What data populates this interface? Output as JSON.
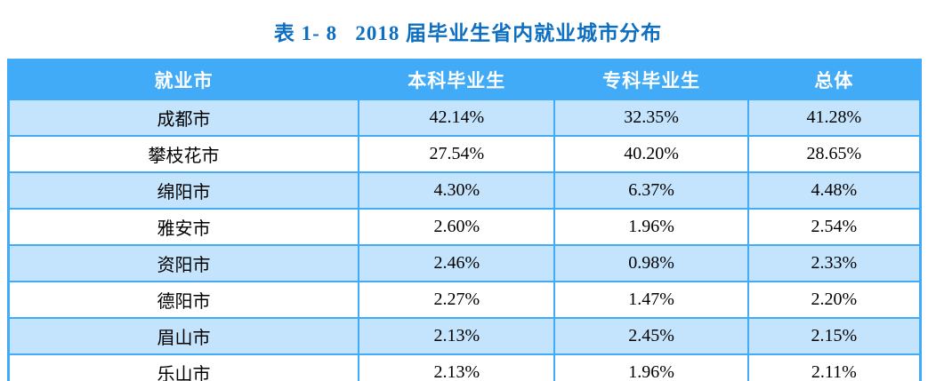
{
  "title": {
    "text": "表 1- 8   2018 届毕业生省内就业城市分布"
  },
  "table": {
    "columns": [
      "就业市",
      "本科毕业生",
      "专科毕业生",
      "总体"
    ],
    "rows": [
      {
        "cells": [
          "成都市",
          "42.14%",
          "32.35%",
          "41.28%"
        ]
      },
      {
        "cells": [
          "攀枝花市",
          "27.54%",
          "40.20%",
          "28.65%"
        ]
      },
      {
        "cells": [
          "绵阳市",
          "4.30%",
          "6.37%",
          "4.48%"
        ]
      },
      {
        "cells": [
          "雅安市",
          "2.60%",
          "1.96%",
          "2.54%"
        ]
      },
      {
        "cells": [
          "资阳市",
          "2.46%",
          "0.98%",
          "2.33%"
        ]
      },
      {
        "cells": [
          "德阳市",
          "2.27%",
          "1.47%",
          "2.20%"
        ]
      },
      {
        "cells": [
          "眉山市",
          "2.13%",
          "2.45%",
          "2.15%"
        ]
      },
      {
        "cells": [
          "乐山市",
          "2.13%",
          "1.96%",
          "2.11%"
        ]
      }
    ]
  },
  "colors": {
    "header_bg": "#41abf7",
    "border_blue": "#41abf7",
    "row_alt_bg": "#c4e3fc",
    "title_blue": "#0d6fc1",
    "header_text": "#ffffff",
    "cell_text": "#000000"
  }
}
